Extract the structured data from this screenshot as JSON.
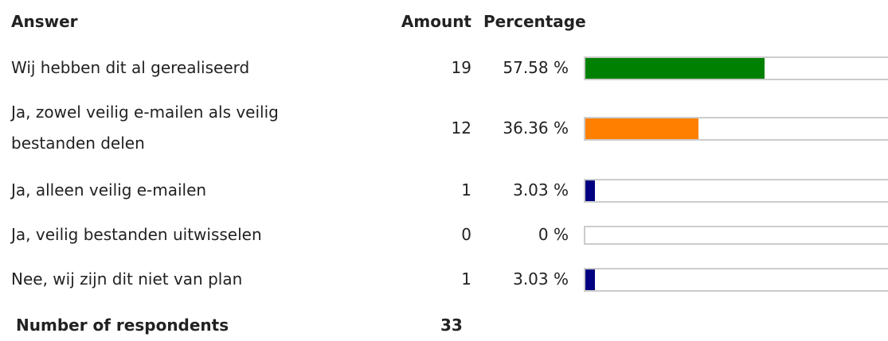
{
  "table": {
    "header": {
      "answer": "Answer",
      "amount": "Amount",
      "percentage": "Percentage"
    },
    "rows": [
      {
        "answer": "Wij hebben dit al gerealiseerd",
        "amount": 19,
        "percentage": 57.58,
        "percentage_label": "57.58 %",
        "color": "#008000"
      },
      {
        "answer": "Ja, zowel veilig e-mailen als veilig bestanden delen",
        "amount": 12,
        "percentage": 36.36,
        "percentage_label": "36.36 %",
        "color": "#ff8000"
      },
      {
        "answer": "Ja, alleen veilig e-mailen",
        "amount": 1,
        "percentage": 3.03,
        "percentage_label": "3.03 %",
        "color": "#000080"
      },
      {
        "answer": "Ja, veilig bestanden uitwisselen",
        "amount": 0,
        "percentage": 0,
        "percentage_label": "0 %",
        "color": "#000080"
      },
      {
        "answer": "Nee, wij zijn dit niet van plan",
        "amount": 1,
        "percentage": 3.03,
        "percentage_label": "3.03 %",
        "color": "#000080"
      }
    ],
    "footer": {
      "label": "Number of respondents",
      "total": 33
    }
  }
}
